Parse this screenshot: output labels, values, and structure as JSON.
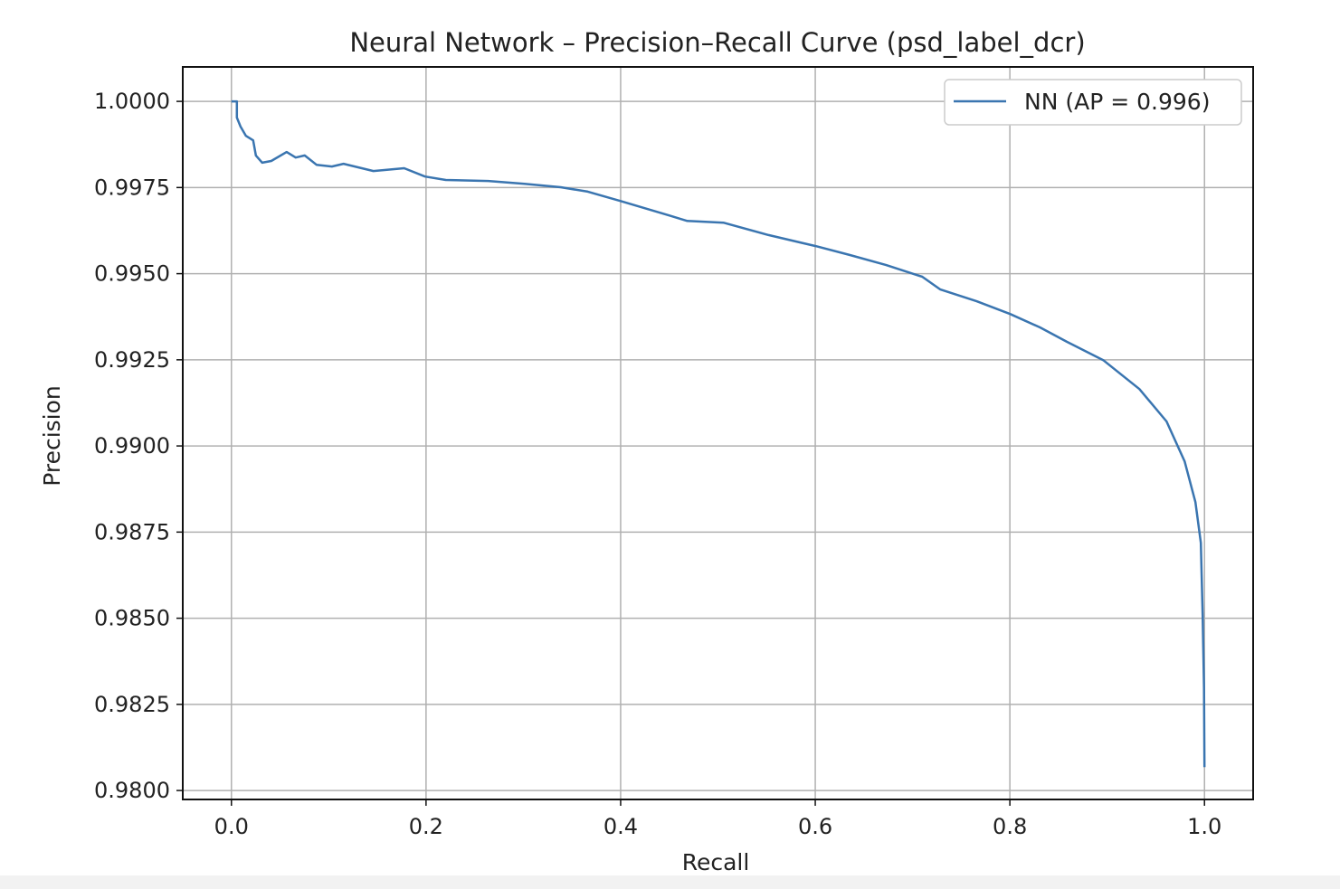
{
  "chart_data": {
    "type": "line",
    "title": "Neural Network – Precision–Recall Curve (psd_label_dcr)",
    "xlabel": "Recall",
    "ylabel": "Precision",
    "xlim": [
      -0.05,
      1.05
    ],
    "ylim": [
      0.97974,
      1.001
    ],
    "grid": true,
    "legend_position": "top-right",
    "xticks": [
      0.0,
      0.2,
      0.4,
      0.6,
      0.8,
      1.0
    ],
    "xtick_labels": [
      "0.0",
      "0.2",
      "0.4",
      "0.6",
      "0.8",
      "1.0"
    ],
    "yticks": [
      1.0,
      0.9975,
      0.995,
      0.9925,
      0.99,
      0.9875,
      0.985,
      0.9825,
      0.98
    ],
    "ytick_labels": [
      "1.0000",
      "0.9975",
      "0.9950",
      "0.9925",
      "0.9900",
      "0.9875",
      "0.9850",
      "0.9825",
      "0.9800"
    ],
    "series": [
      {
        "name": "NN (AP = 0.996)",
        "color": "#3a75b0",
        "x": [
          0.0,
          0.0056,
          0.0056,
          0.0093,
          0.0149,
          0.0223,
          0.0251,
          0.0316,
          0.0409,
          0.0567,
          0.066,
          0.0753,
          0.0874,
          0.1032,
          0.1152,
          0.1459,
          0.1775,
          0.1989,
          0.2203,
          0.2639,
          0.3011,
          0.3383,
          0.3662,
          0.3996,
          0.4498,
          0.4684,
          0.5056,
          0.552,
          0.6004,
          0.6357,
          0.6729,
          0.71,
          0.7286,
          0.7658,
          0.8002,
          0.8309,
          0.8587,
          0.8959,
          0.9331,
          0.961,
          0.9796,
          0.9907,
          0.9963,
          0.9981,
          0.9995,
          1.0
        ],
        "y": [
          1.0,
          1.0,
          0.99953,
          0.99927,
          0.999,
          0.99887,
          0.99843,
          0.99822,
          0.99827,
          0.99853,
          0.99837,
          0.99843,
          0.99816,
          0.99811,
          0.99819,
          0.99798,
          0.99806,
          0.99782,
          0.99772,
          0.99769,
          0.99761,
          0.99751,
          0.99738,
          0.99711,
          0.99669,
          0.99653,
          0.99648,
          0.99612,
          0.9958,
          0.99554,
          0.99525,
          0.99491,
          0.99454,
          0.9942,
          0.99383,
          0.99344,
          0.99302,
          0.99249,
          0.99165,
          0.99071,
          0.98955,
          0.98837,
          0.98719,
          0.98509,
          0.98299,
          0.98068
        ]
      }
    ]
  }
}
